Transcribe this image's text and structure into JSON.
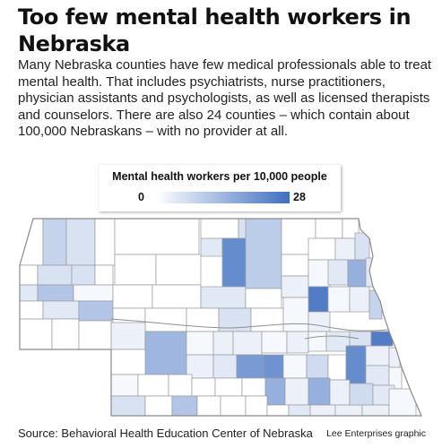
{
  "headline": "Too few mental health workers in Nebraska",
  "deck": "Many Nebraska counties have few medical professionals able to treat mental health. That includes psychiatrists, nurse practitioners, physician assistants and psychologists, as well as licensed therapists and counselors. There are also 24 counties – which contain about 100,000 Nebraskans – with no provider at all.",
  "legend": {
    "title": "Mental health workers per 10,000 people",
    "min": "0",
    "max": "28",
    "color_min": "#ffffff",
    "color_max": "#3f6fc0"
  },
  "map": {
    "outline_color": "#8a8a8a",
    "county_border_color": "#9a9a9a",
    "no_provider_color": "#ffffff"
  },
  "source": "Source: Behavioral Health Education Center of Nebraska",
  "credit": "Lee Enterprises graphic"
}
